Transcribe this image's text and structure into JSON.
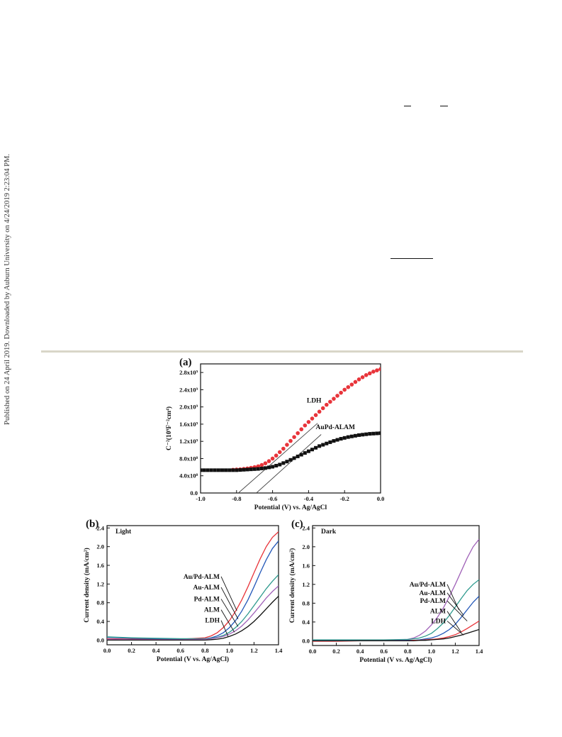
{
  "side_note": "Published on 24 April 2019. Downloaded by Auburn University on 4/24/2019 2:23:04 PM.",
  "colors": {
    "red": "#e8343a",
    "black": "#111111",
    "blue": "#2357b8",
    "teal": "#2e9a8e",
    "purple": "#a062b8"
  },
  "chart_data": [
    {
      "id": "a",
      "type": "scatter",
      "panel_label": "(a)",
      "xlabel": "Potential (V) vs. Ag/AgCl",
      "ylabel": "C⁻²(10⁹F⁻²cm⁴)",
      "xlim": [
        -1.0,
        0.0
      ],
      "ylim": [
        0,
        3000000000.0
      ],
      "x_ticks": [
        -1.0,
        -0.8,
        -0.6,
        -0.4,
        -0.2,
        0.0
      ],
      "x_tick_labels": [
        "-1.0",
        "-0.8",
        "-0.6",
        "-0.4",
        "-0.2",
        "0.0"
      ],
      "y_ticks": [
        0,
        400000000.0,
        800000000.0,
        1200000000.0,
        1600000000.0,
        2000000000.0,
        2400000000.0,
        2800000000.0
      ],
      "y_tick_labels": [
        "0.0",
        "4.0x10⁸",
        "8.0x10⁸",
        "1.2x10⁹",
        "1.6x10⁹",
        "2.0x10⁹",
        "2.4x10⁹",
        "2.8x10⁹"
      ],
      "series": [
        {
          "name": "LDH",
          "color": "red",
          "marker": "circle",
          "x": [
            -0.82,
            -0.8,
            -0.78,
            -0.76,
            -0.74,
            -0.72,
            -0.7,
            -0.68,
            -0.66,
            -0.64,
            -0.62,
            -0.6,
            -0.58,
            -0.56,
            -0.54,
            -0.52,
            -0.5,
            -0.48,
            -0.46,
            -0.44,
            -0.42,
            -0.4,
            -0.38,
            -0.36,
            -0.34,
            -0.32,
            -0.3,
            -0.28,
            -0.26,
            -0.24,
            -0.22,
            -0.2,
            -0.18,
            -0.16,
            -0.14,
            -0.12,
            -0.1,
            -0.08,
            -0.06,
            -0.04,
            -0.02,
            0.0
          ],
          "y": [
            540000000.0,
            545000000.0,
            550000000.0,
            560000000.0,
            570000000.0,
            585000000.0,
            600000000.0,
            620000000.0,
            650000000.0,
            690000000.0,
            740000000.0,
            800000000.0,
            870000000.0,
            950000000.0,
            1030000000.0,
            1120000000.0,
            1210000000.0,
            1300000000.0,
            1390000000.0,
            1480000000.0,
            1570000000.0,
            1650000000.0,
            1730000000.0,
            1810000000.0,
            1890000000.0,
            1970000000.0,
            2050000000.0,
            2120000000.0,
            2190000000.0,
            2260000000.0,
            2330000000.0,
            2400000000.0,
            2460000000.0,
            2520000000.0,
            2580000000.0,
            2640000000.0,
            2690000000.0,
            2740000000.0,
            2780000000.0,
            2820000000.0,
            2850000000.0,
            2880000000.0
          ]
        },
        {
          "name": "AuPd-ALAM",
          "color": "black",
          "marker": "square",
          "x": [
            -1.0,
            -0.98,
            -0.96,
            -0.94,
            -0.92,
            -0.9,
            -0.88,
            -0.86,
            -0.84,
            -0.82,
            -0.8,
            -0.78,
            -0.76,
            -0.74,
            -0.72,
            -0.7,
            -0.68,
            -0.66,
            -0.64,
            -0.62,
            -0.6,
            -0.58,
            -0.56,
            -0.54,
            -0.52,
            -0.5,
            -0.48,
            -0.46,
            -0.44,
            -0.42,
            -0.4,
            -0.38,
            -0.36,
            -0.34,
            -0.32,
            -0.3,
            -0.28,
            -0.26,
            -0.24,
            -0.22,
            -0.2,
            -0.18,
            -0.16,
            -0.14,
            -0.12,
            -0.1,
            -0.08,
            -0.06,
            -0.04,
            -0.02,
            0.0
          ],
          "y": [
            530000000.0,
            530000000.0,
            530000000.0,
            530000000.0,
            530000000.0,
            530000000.0,
            530000000.0,
            530000000.0,
            530000000.0,
            530000000.0,
            530000000.0,
            535000000.0,
            540000000.0,
            545000000.0,
            550000000.0,
            555000000.0,
            560000000.0,
            570000000.0,
            580000000.0,
            595000000.0,
            610000000.0,
            635000000.0,
            660000000.0,
            695000000.0,
            730000000.0,
            770000000.0,
            810000000.0,
            850000000.0,
            890000000.0,
            930000000.0,
            970000000.0,
            1010000000.0,
            1050000000.0,
            1090000000.0,
            1120000000.0,
            1150000000.0,
            1180000000.0,
            1210000000.0,
            1235000000.0,
            1260000000.0,
            1280000000.0,
            1300000000.0,
            1315000000.0,
            1330000000.0,
            1345000000.0,
            1355000000.0,
            1365000000.0,
            1375000000.0,
            1380000000.0,
            1385000000.0,
            1390000000.0
          ]
        }
      ],
      "fit_lines": [
        {
          "color": "black",
          "x": [
            -0.79,
            -0.35
          ],
          "y": [
            0,
            1620000000.0
          ]
        },
        {
          "color": "black",
          "x": [
            -0.69,
            -0.33
          ],
          "y": [
            0,
            1360000000.0
          ]
        }
      ],
      "annotations": [
        {
          "text": "LDH",
          "x": -0.41,
          "y": 2100000000.0
        },
        {
          "text": "AuPd-ALAM",
          "x": -0.36,
          "y": 1480000000.0
        }
      ]
    },
    {
      "id": "b",
      "type": "line",
      "panel_label": "(b)",
      "condition": "Light",
      "xlabel": "Potential (V vs. Ag/AgCl)",
      "ylabel": "Current density (mA/cm²)",
      "xlim": [
        0.0,
        1.4
      ],
      "ylim": [
        -0.1,
        2.45
      ],
      "x_ticks": [
        0.0,
        0.2,
        0.4,
        0.6,
        0.8,
        1.0,
        1.2,
        1.4
      ],
      "x_tick_labels": [
        "0.0",
        "0.2",
        "0.4",
        "0.6",
        "0.8",
        "1.0",
        "1.2",
        "1.4"
      ],
      "y_ticks": [
        0.0,
        0.4,
        0.8,
        1.2,
        1.6,
        2.0,
        2.4
      ],
      "y_tick_labels": [
        "0.0",
        "0.4",
        "0.8",
        "1.2",
        "1.6",
        "2.0",
        "2.4"
      ],
      "series": [
        {
          "name": "Au/Pd-ALM",
          "color": "red",
          "x": [
            0.0,
            0.2,
            0.4,
            0.6,
            0.8,
            0.85,
            0.9,
            0.95,
            1.0,
            1.05,
            1.1,
            1.15,
            1.2,
            1.25,
            1.3,
            1.35,
            1.4
          ],
          "y": [
            0.03,
            0.02,
            0.02,
            0.02,
            0.05,
            0.09,
            0.16,
            0.27,
            0.42,
            0.62,
            0.86,
            1.14,
            1.44,
            1.74,
            2.0,
            2.2,
            2.32
          ]
        },
        {
          "name": "Au-ALM",
          "color": "blue",
          "x": [
            0.0,
            0.2,
            0.4,
            0.6,
            0.8,
            0.85,
            0.9,
            0.95,
            1.0,
            1.05,
            1.1,
            1.15,
            1.2,
            1.25,
            1.3,
            1.35,
            1.4
          ],
          "y": [
            0.06,
            0.04,
            0.03,
            0.02,
            0.03,
            0.05,
            0.09,
            0.16,
            0.27,
            0.42,
            0.62,
            0.86,
            1.14,
            1.44,
            1.72,
            1.96,
            2.12
          ]
        },
        {
          "name": "Pd-ALM",
          "color": "teal",
          "x": [
            0.0,
            0.2,
            0.4,
            0.6,
            0.8,
            0.85,
            0.9,
            0.95,
            1.0,
            1.05,
            1.1,
            1.15,
            1.2,
            1.25,
            1.3,
            1.35,
            1.4
          ],
          "y": [
            0.07,
            0.05,
            0.04,
            0.03,
            0.03,
            0.04,
            0.06,
            0.1,
            0.17,
            0.27,
            0.4,
            0.56,
            0.74,
            0.92,
            1.1,
            1.26,
            1.4
          ]
        },
        {
          "name": "ALM",
          "color": "purple",
          "x": [
            0.0,
            0.2,
            0.4,
            0.6,
            0.8,
            0.85,
            0.9,
            0.95,
            1.0,
            1.05,
            1.1,
            1.15,
            1.2,
            1.25,
            1.3,
            1.35,
            1.4
          ],
          "y": [
            0.02,
            0.01,
            0.01,
            0.01,
            0.02,
            0.03,
            0.05,
            0.08,
            0.13,
            0.2,
            0.3,
            0.43,
            0.58,
            0.74,
            0.9,
            1.04,
            1.16
          ]
        },
        {
          "name": "LDH",
          "color": "black",
          "x": [
            0.0,
            0.2,
            0.4,
            0.6,
            0.8,
            0.85,
            0.9,
            0.95,
            1.0,
            1.05,
            1.1,
            1.15,
            1.2,
            1.25,
            1.3,
            1.35,
            1.4
          ],
          "y": [
            0.0,
            0.0,
            0.0,
            0.0,
            0.0,
            0.01,
            0.02,
            0.04,
            0.08,
            0.13,
            0.2,
            0.29,
            0.4,
            0.53,
            0.67,
            0.81,
            0.94
          ]
        }
      ],
      "annotations": [
        {
          "text": "Au/Pd-ALM",
          "tx": 0.92,
          "ty": 1.36,
          "ax": 1.06,
          "ay": 0.63
        },
        {
          "text": "Au-ALM",
          "tx": 0.92,
          "ty": 1.13,
          "ax": 1.07,
          "ay": 0.45
        },
        {
          "text": "Pd-ALM",
          "tx": 0.92,
          "ty": 0.88,
          "ax": 1.07,
          "ay": 0.29
        },
        {
          "text": "ALM",
          "tx": 0.92,
          "ty": 0.65,
          "ax": 1.04,
          "ay": 0.17
        },
        {
          "text": "LDH",
          "tx": 0.92,
          "ty": 0.42,
          "ax": 0.99,
          "ay": 0.07
        }
      ]
    },
    {
      "id": "c",
      "type": "line",
      "panel_label": "(c)",
      "condition": "Dark",
      "xlabel": "Potential (V vs. Ag/AgCl)",
      "ylabel": "Current density (mA/cm²)",
      "xlim": [
        0.0,
        1.4
      ],
      "ylim": [
        -0.1,
        2.45
      ],
      "x_ticks": [
        0.0,
        0.2,
        0.4,
        0.6,
        0.8,
        1.0,
        1.2,
        1.4
      ],
      "x_tick_labels": [
        "0.0",
        "0.2",
        "0.4",
        "0.6",
        "0.8",
        "1.0",
        "1.2",
        "1.4"
      ],
      "y_ticks": [
        0.0,
        0.4,
        0.8,
        1.2,
        1.6,
        2.0,
        2.4
      ],
      "y_tick_labels": [
        "0.0",
        "0.4",
        "0.8",
        "1.2",
        "1.6",
        "2.0",
        "2.4"
      ],
      "series": [
        {
          "name": "Au/Pd-ALM",
          "color": "purple",
          "x": [
            0.0,
            0.2,
            0.4,
            0.6,
            0.8,
            0.85,
            0.9,
            0.95,
            1.0,
            1.05,
            1.1,
            1.15,
            1.2,
            1.25,
            1.3,
            1.35,
            1.4
          ],
          "y": [
            0.0,
            0.0,
            0.0,
            0.01,
            0.03,
            0.06,
            0.12,
            0.21,
            0.34,
            0.5,
            0.7,
            0.94,
            1.2,
            1.48,
            1.76,
            2.0,
            2.16
          ]
        },
        {
          "name": "Au-ALM",
          "color": "teal",
          "x": [
            0.0,
            0.2,
            0.4,
            0.6,
            0.8,
            0.85,
            0.9,
            0.95,
            1.0,
            1.05,
            1.1,
            1.15,
            1.2,
            1.25,
            1.3,
            1.35,
            1.4
          ],
          "y": [
            0.02,
            0.02,
            0.02,
            0.02,
            0.03,
            0.04,
            0.06,
            0.1,
            0.16,
            0.26,
            0.38,
            0.54,
            0.72,
            0.9,
            1.07,
            1.2,
            1.3
          ]
        },
        {
          "name": "Pd-ALM",
          "color": "blue",
          "x": [
            0.0,
            0.2,
            0.4,
            0.6,
            0.8,
            0.85,
            0.9,
            0.95,
            1.0,
            1.05,
            1.1,
            1.15,
            1.2,
            1.25,
            1.3,
            1.35,
            1.4
          ],
          "y": [
            0.0,
            0.0,
            0.0,
            0.0,
            0.01,
            0.01,
            0.02,
            0.04,
            0.06,
            0.1,
            0.16,
            0.24,
            0.35,
            0.5,
            0.66,
            0.82,
            0.95
          ]
        },
        {
          "name": "ALM",
          "color": "red",
          "x": [
            0.0,
            0.2,
            0.4,
            0.6,
            0.8,
            0.85,
            0.9,
            0.95,
            1.0,
            1.05,
            1.1,
            1.15,
            1.2,
            1.25,
            1.3,
            1.35,
            1.4
          ],
          "y": [
            -0.01,
            -0.01,
            0.0,
            0.0,
            0.0,
            0.01,
            0.01,
            0.02,
            0.03,
            0.04,
            0.06,
            0.09,
            0.13,
            0.19,
            0.26,
            0.34,
            0.42
          ]
        },
        {
          "name": "LDH",
          "color": "black",
          "x": [
            0.0,
            0.2,
            0.4,
            0.6,
            0.8,
            0.85,
            0.9,
            0.95,
            1.0,
            1.05,
            1.1,
            1.15,
            1.2,
            1.25,
            1.3,
            1.35,
            1.4
          ],
          "y": [
            0.0,
            0.0,
            0.0,
            0.0,
            0.0,
            0.0,
            0.01,
            0.01,
            0.02,
            0.03,
            0.04,
            0.06,
            0.09,
            0.12,
            0.16,
            0.2,
            0.24
          ]
        }
      ],
      "annotations": [
        {
          "text": "Au/Pd-ALM",
          "tx": 1.12,
          "ty": 1.2,
          "ax": 1.23,
          "ay": 0.66
        },
        {
          "text": "Au-ALM",
          "tx": 1.12,
          "ty": 1.02,
          "ax": 1.27,
          "ay": 0.54
        },
        {
          "text": "Pd-ALM",
          "tx": 1.12,
          "ty": 0.85,
          "ax": 1.3,
          "ay": 0.42
        },
        {
          "text": "ALM",
          "tx": 1.12,
          "ty": 0.63,
          "ax": 1.25,
          "ay": 0.18
        },
        {
          "text": "LDH",
          "tx": 1.12,
          "ty": 0.42,
          "ax": 1.27,
          "ay": 0.12
        }
      ]
    }
  ]
}
